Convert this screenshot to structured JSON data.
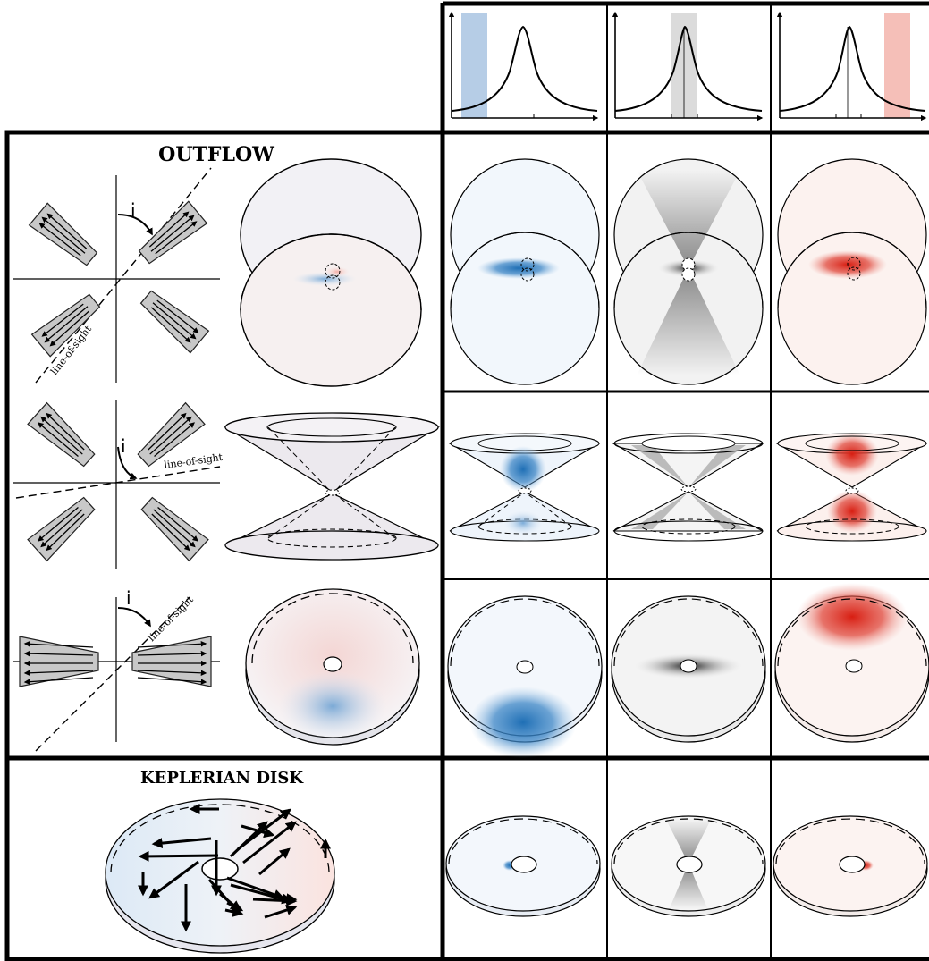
{
  "titles": {
    "outflow": "OUTFLOW",
    "keplerian": "KEPLERIAN DISK"
  },
  "diagram_labels": {
    "inclination": "i",
    "line_of_sight": "line-of-sight"
  },
  "columns": [
    {
      "channel": "blue",
      "highlight_color": "#a9c4e2"
    },
    {
      "channel": "center",
      "highlight_color": "#d7d7d7"
    },
    {
      "channel": "red",
      "highlight_color": "#f4b8b0"
    }
  ],
  "colors": {
    "blue": "#1f6fb5",
    "red": "#d81e12",
    "gray": "#555555",
    "pale_blue": "#eef4fb",
    "pale_red": "#fbefec",
    "lobe_fill": "#c8c8c8"
  }
}
